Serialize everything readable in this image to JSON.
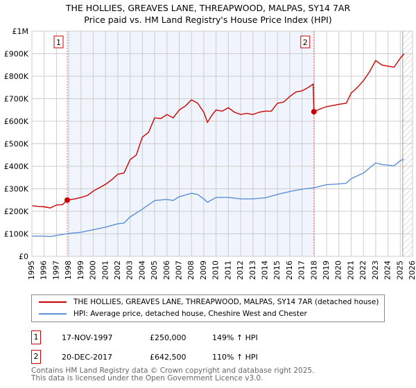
{
  "chart_data": {
    "type": "line",
    "title": "THE HOLLIES, GREAVES LANE, THREAPWOOD, MALPAS, SY14 7AR",
    "subtitle": "Price paid vs. HM Land Registry's House Price Index (HPI)",
    "xlim": [
      1995,
      2026
    ],
    "ylim": [
      0,
      1000000
    ],
    "x_ticks": [
      "1995",
      "1996",
      "1997",
      "1998",
      "1999",
      "2000",
      "2001",
      "2002",
      "2003",
      "2004",
      "2005",
      "2006",
      "2007",
      "2008",
      "2009",
      "2010",
      "2011",
      "2012",
      "2013",
      "2014",
      "2015",
      "2016",
      "2017",
      "2018",
      "2019",
      "2020",
      "2021",
      "2022",
      "2023",
      "2024",
      "2025",
      "2026"
    ],
    "y_ticks": [
      {
        "v": 0,
        "label": "£0"
      },
      {
        "v": 100000,
        "label": "£100K"
      },
      {
        "v": 200000,
        "label": "£200K"
      },
      {
        "v": 300000,
        "label": "£300K"
      },
      {
        "v": 400000,
        "label": "£400K"
      },
      {
        "v": 500000,
        "label": "£500K"
      },
      {
        "v": 600000,
        "label": "£600K"
      },
      {
        "v": 700000,
        "label": "£700K"
      },
      {
        "v": 800000,
        "label": "£800K"
      },
      {
        "v": 900000,
        "label": "£900K"
      },
      {
        "v": 1000000,
        "label": "£1M"
      }
    ],
    "grid": true,
    "shaded_range": [
      1997.88,
      2017.97
    ],
    "forecast_hatch_from": 2025.2,
    "series": [
      {
        "name": "THE HOLLIES, GREAVES LANE, THREAPWOOD, MALPAS, SY14 7AR (detached house)",
        "color": "#cc0000",
        "x": [
          1995,
          1995.5,
          1996,
          1996.5,
          1997,
          1997.5,
          1997.88,
          1998.5,
          1999,
          1999.5,
          2000,
          2000.5,
          2001,
          2001.5,
          2002,
          2002.5,
          2003,
          2003.5,
          2004,
          2004.5,
          2005,
          2005.5,
          2006,
          2006.5,
          2007,
          2007.5,
          2008,
          2008.5,
          2009,
          2009.3,
          2009.7,
          2010,
          2010.5,
          2011,
          2011.5,
          2012,
          2012.5,
          2013,
          2013.5,
          2014,
          2014.5,
          2015,
          2015.5,
          2016,
          2016.5,
          2017,
          2017.5,
          2017.9,
          2017.97,
          2018.5,
          2019,
          2019.5,
          2020,
          2020.6,
          2021,
          2021.5,
          2022,
          2022.5,
          2023,
          2023.5,
          2024,
          2024.5,
          2025,
          2025.3
        ],
        "y": [
          225000,
          222000,
          220000,
          215000,
          228000,
          230000,
          250000,
          255000,
          262000,
          270000,
          290000,
          305000,
          320000,
          340000,
          365000,
          370000,
          430000,
          450000,
          530000,
          550000,
          615000,
          612000,
          630000,
          615000,
          650000,
          668000,
          695000,
          680000,
          640000,
          595000,
          630000,
          650000,
          645000,
          660000,
          640000,
          630000,
          635000,
          630000,
          640000,
          645000,
          645000,
          680000,
          685000,
          710000,
          730000,
          735000,
          750000,
          765000,
          642500,
          655000,
          665000,
          670000,
          675000,
          680000,
          725000,
          750000,
          780000,
          820000,
          870000,
          850000,
          845000,
          840000,
          880000,
          900000
        ]
      },
      {
        "name": "HPI: Average price, detached house, Cheshire West and Chester",
        "color": "#5b8fd4",
        "x": [
          1995,
          1996,
          1996.5,
          1997,
          1998,
          1999,
          2000,
          2001,
          2002,
          2002.5,
          2003,
          2004,
          2005,
          2006,
          2006.5,
          2007,
          2008,
          2008.5,
          2009,
          2009.3,
          2010,
          2011,
          2012,
          2013,
          2014,
          2015,
          2016,
          2017,
          2018,
          2019,
          2020,
          2020.6,
          2021,
          2022,
          2023,
          2023.5,
          2024,
          2024.5,
          2025,
          2025.3
        ],
        "y": [
          90000,
          90000,
          88000,
          93000,
          102000,
          107000,
          118000,
          130000,
          145000,
          148000,
          175000,
          210000,
          248000,
          253000,
          248000,
          265000,
          280000,
          275000,
          255000,
          240000,
          262000,
          262000,
          255000,
          255000,
          260000,
          275000,
          288000,
          298000,
          305000,
          318000,
          322000,
          325000,
          345000,
          370000,
          415000,
          408000,
          405000,
          402000,
          425000,
          432000
        ]
      }
    ],
    "annotations": [
      {
        "label": "1",
        "x": 1997.88,
        "y": 250000
      },
      {
        "label": "2",
        "x": 2017.97,
        "y": 642500
      }
    ]
  },
  "legend": {
    "items": [
      {
        "label": "THE HOLLIES, GREAVES LANE, THREAPWOOD, MALPAS, SY14 7AR (detached house)",
        "color": "#cc0000"
      },
      {
        "label": "HPI: Average price, detached house, Cheshire West and Chester",
        "color": "#5b8fd4"
      }
    ]
  },
  "transactions": [
    {
      "num": "1",
      "date": "17-NOV-1997",
      "price": "£250,000",
      "hpi": "149% ↑ HPI"
    },
    {
      "num": "2",
      "date": "20-DEC-2017",
      "price": "£642,500",
      "hpi": "110% ↑ HPI"
    }
  ],
  "footer": {
    "line1": "Contains HM Land Registry data © Crown copyright and database right 2025.",
    "line2": "This data is licensed under the Open Government Licence v3.0."
  }
}
